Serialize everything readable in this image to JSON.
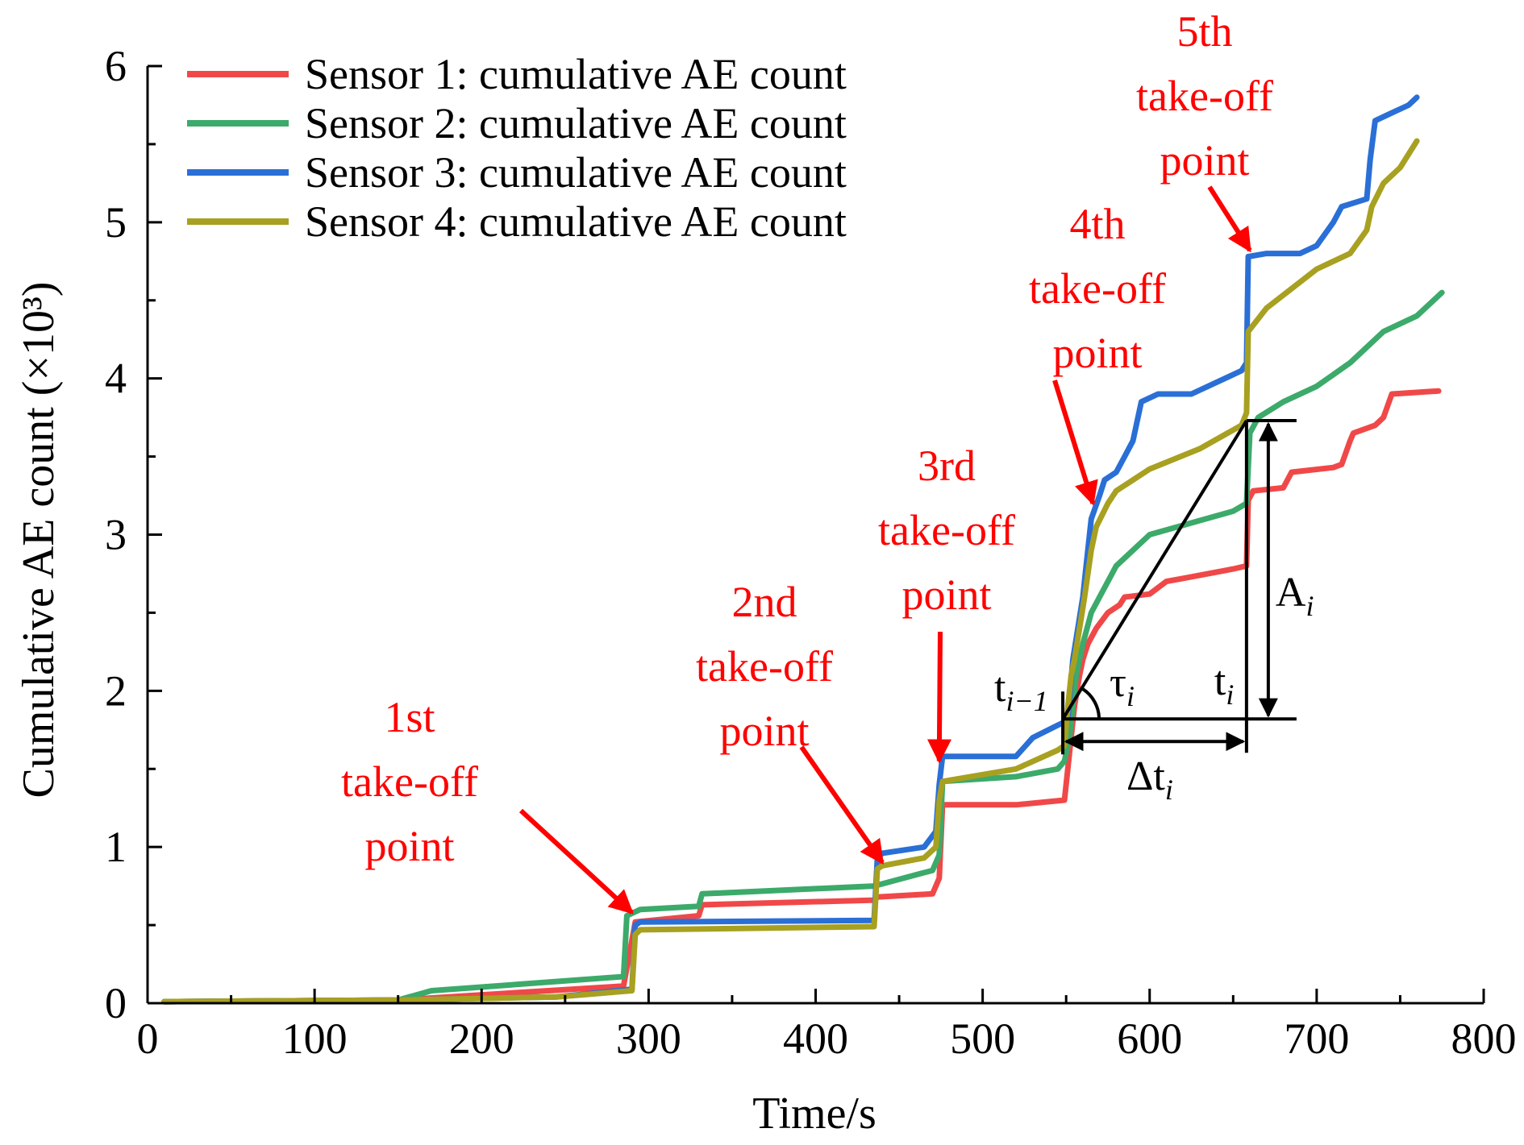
{
  "chart_data": {
    "type": "line",
    "title": "",
    "xlabel": "Time/s",
    "ylabel": "Cumulative AE count (×10³)",
    "xlim": [
      0,
      800
    ],
    "ylim": [
      0,
      6
    ],
    "xticks": [
      0,
      100,
      200,
      300,
      400,
      500,
      600,
      700,
      800
    ],
    "xtick_labels": [
      "0",
      "100",
      "200",
      "300",
      "400",
      "500",
      "600",
      "700",
      "800"
    ],
    "yticks": [
      0,
      1,
      2,
      3,
      4,
      5,
      6
    ],
    "ytick_labels": [
      "0",
      "1",
      "2",
      "3",
      "4",
      "5",
      "6"
    ],
    "legend_position": "top-left",
    "series": [
      {
        "name": "Sensor 1: cumulative AE count",
        "color": "#f04848",
        "x": [
          10,
          150,
          285,
          292,
          330,
          332,
          435,
          437,
          470,
          474,
          476,
          520,
          549,
          552,
          555,
          558,
          560,
          563,
          568,
          575,
          582,
          585,
          600,
          610,
          620,
          650,
          658,
          659,
          662,
          680,
          685,
          710,
          715,
          720,
          722,
          735,
          740,
          745,
          773
        ],
        "y": [
          0.01,
          0.02,
          0.11,
          0.52,
          0.56,
          0.63,
          0.66,
          0.68,
          0.7,
          0.8,
          1.27,
          1.27,
          1.3,
          1.6,
          1.9,
          2.1,
          2.2,
          2.3,
          2.4,
          2.5,
          2.55,
          2.6,
          2.62,
          2.7,
          2.72,
          2.78,
          2.8,
          3.22,
          3.28,
          3.3,
          3.4,
          3.43,
          3.45,
          3.6,
          3.65,
          3.7,
          3.75,
          3.9,
          3.92
        ]
      },
      {
        "name": "Sensor 2: cumulative AE count",
        "color": "#3caa6a",
        "x": [
          10,
          150,
          170,
          285,
          287,
          295,
          330,
          332,
          435,
          470,
          474,
          476,
          520,
          545,
          549,
          552,
          556,
          560,
          565,
          570,
          580,
          590,
          600,
          650,
          658,
          660,
          665,
          680,
          700,
          720,
          730,
          740,
          760,
          775
        ],
        "y": [
          0.01,
          0.02,
          0.08,
          0.17,
          0.56,
          0.6,
          0.62,
          0.7,
          0.75,
          0.85,
          0.95,
          1.42,
          1.45,
          1.5,
          1.55,
          1.7,
          2.1,
          2.3,
          2.5,
          2.6,
          2.8,
          2.9,
          3.0,
          3.15,
          3.2,
          3.65,
          3.75,
          3.85,
          3.95,
          4.1,
          4.2,
          4.3,
          4.4,
          4.55
        ]
      },
      {
        "name": "Sensor 3: cumulative AE count",
        "color": "#2a6fd6",
        "x": [
          10,
          150,
          245,
          290,
          292,
          295,
          435,
          437,
          440,
          465,
          472,
          474,
          476,
          520,
          530,
          545,
          549,
          551,
          554,
          557,
          560,
          562,
          565,
          570,
          573,
          580,
          585,
          590,
          595,
          605,
          625,
          645,
          655,
          658,
          659,
          670,
          690,
          700,
          710,
          715,
          730,
          732,
          735,
          745,
          755,
          760
        ],
        "y": [
          0.01,
          0.02,
          0.04,
          0.09,
          0.5,
          0.52,
          0.53,
          0.93,
          0.96,
          1.0,
          1.1,
          1.4,
          1.58,
          1.58,
          1.7,
          1.78,
          1.8,
          1.82,
          2.2,
          2.4,
          2.6,
          2.8,
          3.1,
          3.25,
          3.35,
          3.4,
          3.5,
          3.6,
          3.85,
          3.9,
          3.9,
          4.0,
          4.05,
          4.1,
          4.78,
          4.8,
          4.8,
          4.85,
          5.0,
          5.1,
          5.15,
          5.4,
          5.65,
          5.7,
          5.75,
          5.8
        ]
      },
      {
        "name": "Sensor 4: cumulative AE count",
        "color": "#a8a020",
        "x": [
          10,
          150,
          245,
          290,
          292,
          295,
          435,
          437,
          440,
          465,
          472,
          474,
          476,
          520,
          545,
          549,
          551,
          553,
          555,
          558,
          561,
          565,
          568,
          575,
          580,
          600,
          630,
          655,
          658,
          659,
          670,
          700,
          720,
          730,
          733,
          740,
          750,
          760
        ],
        "y": [
          0.01,
          0.02,
          0.04,
          0.08,
          0.44,
          0.47,
          0.49,
          0.86,
          0.88,
          0.93,
          1.0,
          1.3,
          1.42,
          1.5,
          1.62,
          1.65,
          1.9,
          2.1,
          2.2,
          2.4,
          2.6,
          2.9,
          3.05,
          3.2,
          3.28,
          3.42,
          3.55,
          3.7,
          3.78,
          4.3,
          4.45,
          4.7,
          4.8,
          4.95,
          5.1,
          5.25,
          5.35,
          5.52
        ]
      }
    ],
    "annotations": [
      {
        "lines": [
          "1st",
          "take-off",
          "point"
        ],
        "color": "#ff0000",
        "point": [
          290,
          0.58
        ]
      },
      {
        "lines": [
          "2nd",
          "take-off",
          "point"
        ],
        "color": "#ff0000",
        "point": [
          440,
          0.9
        ]
      },
      {
        "lines": [
          "3rd",
          "take-off",
          "point"
        ],
        "color": "#ff0000",
        "point": [
          474,
          1.55
        ]
      },
      {
        "lines": [
          "4th",
          "take-off",
          "point"
        ],
        "color": "#ff0000",
        "point": [
          566,
          3.2
        ]
      },
      {
        "lines": [
          "5th",
          "take-off",
          "point"
        ],
        "color": "#ff0000",
        "point": [
          660,
          4.82
        ]
      }
    ],
    "geometry_labels": {
      "t_prev": "t",
      "t_prev_sub": "i−1",
      "tau": "τ",
      "tau_sub": "i",
      "t_i": "t",
      "t_i_sub": "i",
      "A": "A",
      "A_sub": "i",
      "dt": "Δt",
      "dt_sub": "i"
    },
    "geometry": {
      "t_prev_time": 548,
      "t_i_time": 658,
      "base_value": 1.82,
      "top_value": 3.73
    }
  }
}
